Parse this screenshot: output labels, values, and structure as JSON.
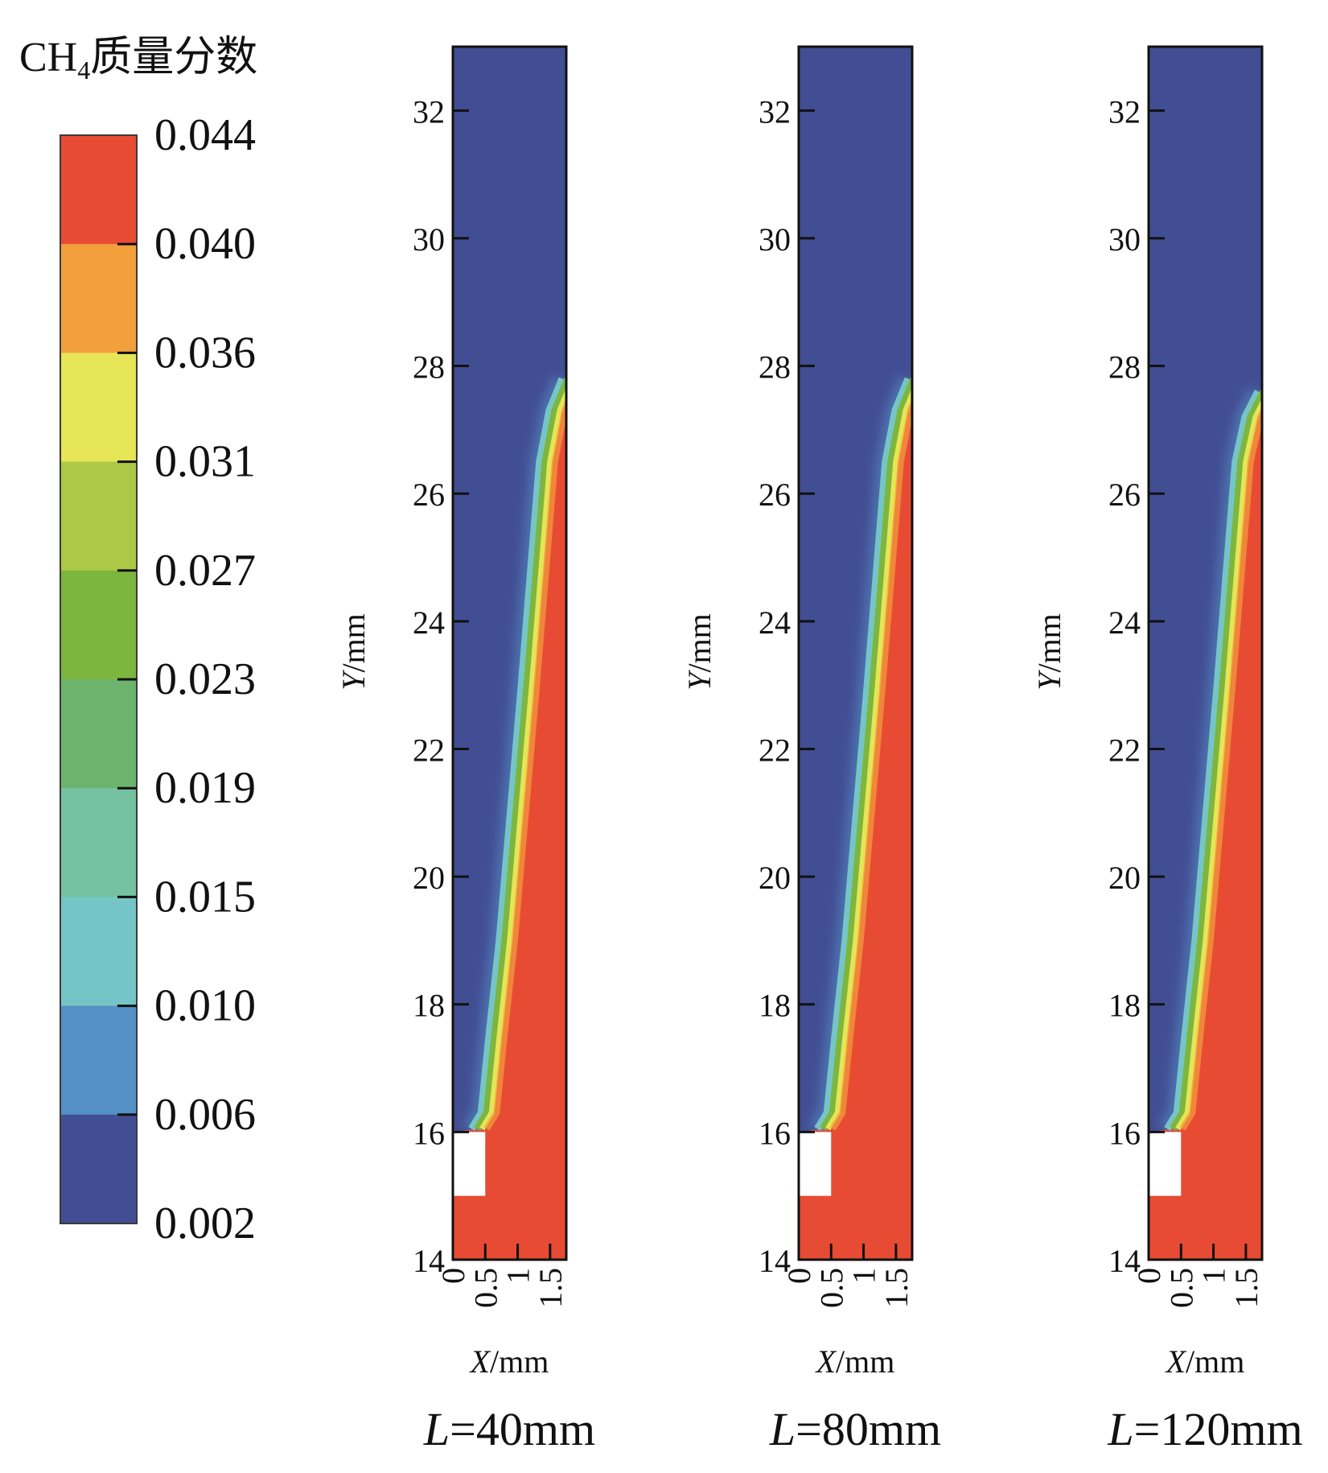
{
  "colorbar": {
    "title_main": "CH",
    "title_sub": "4",
    "title_rest": "质量分数",
    "tick_labels": [
      "0.044",
      "0.040",
      "0.036",
      "0.031",
      "0.027",
      "0.023",
      "0.019",
      "0.015",
      "0.010",
      "0.006",
      "0.002"
    ],
    "band_colors": [
      "#e84b33",
      "#f39f3c",
      "#e6e556",
      "#adc847",
      "#7cb63f",
      "#6cb46d",
      "#74c29f",
      "#76c5c6",
      "#5490c6",
      "#424e93"
    ]
  },
  "chart_data": [
    {
      "type": "heatmap",
      "title": "L=40mm",
      "label_var": "L",
      "label_value": "=40mm",
      "xlabel_var": "X",
      "xlabel_unit": "/mm",
      "ylabel_var": "Y",
      "ylabel_unit": "/mm",
      "xlim": [
        0,
        1.75
      ],
      "ylim": [
        14,
        33
      ],
      "xticks": [
        0,
        0.5,
        1,
        1.5
      ],
      "xtick_labels": [
        "0",
        "0.5",
        "1",
        "1.5"
      ],
      "yticks": [
        14,
        16,
        18,
        20,
        22,
        24,
        26,
        28,
        30,
        32
      ],
      "ytick_labels": [
        "14",
        "16",
        "18",
        "20",
        "22",
        "24",
        "26",
        "28",
        "30",
        "32"
      ],
      "obstacle": {
        "x": [
          0,
          0.5
        ],
        "y": [
          15,
          16
        ]
      },
      "interface": [
        [
          0.35,
          16.05
        ],
        [
          0.5,
          16.3
        ],
        [
          0.62,
          17.5
        ],
        [
          0.78,
          19
        ],
        [
          0.95,
          21
        ],
        [
          1.12,
          23
        ],
        [
          1.28,
          25
        ],
        [
          1.4,
          26.5
        ],
        [
          1.55,
          27.3
        ],
        [
          1.75,
          27.8
        ]
      ],
      "value_min_region": 0.002,
      "value_max_region": 0.044
    },
    {
      "type": "heatmap",
      "title": "L=80mm",
      "label_var": "L",
      "label_value": "=80mm",
      "xlabel_var": "X",
      "xlabel_unit": "/mm",
      "ylabel_var": "Y",
      "ylabel_unit": "/mm",
      "xlim": [
        0,
        1.75
      ],
      "ylim": [
        14,
        33
      ],
      "xticks": [
        0,
        0.5,
        1,
        1.5
      ],
      "xtick_labels": [
        "0",
        "0.5",
        "1",
        "1.5"
      ],
      "yticks": [
        14,
        16,
        18,
        20,
        22,
        24,
        26,
        28,
        30,
        32
      ],
      "ytick_labels": [
        "14",
        "16",
        "18",
        "20",
        "22",
        "24",
        "26",
        "28",
        "30",
        "32"
      ],
      "obstacle": {
        "x": [
          0,
          0.5
        ],
        "y": [
          15,
          16
        ]
      },
      "interface": [
        [
          0.35,
          16.05
        ],
        [
          0.5,
          16.3
        ],
        [
          0.62,
          17.5
        ],
        [
          0.78,
          19
        ],
        [
          0.95,
          21
        ],
        [
          1.12,
          23
        ],
        [
          1.28,
          25
        ],
        [
          1.4,
          26.5
        ],
        [
          1.55,
          27.3
        ],
        [
          1.75,
          27.8
        ]
      ],
      "value_min_region": 0.002,
      "value_max_region": 0.044
    },
    {
      "type": "heatmap",
      "title": "L=120mm",
      "label_var": "L",
      "label_value": "=120mm",
      "xlabel_var": "X",
      "xlabel_unit": "/mm",
      "ylabel_var": "Y",
      "ylabel_unit": "/mm",
      "xlim": [
        0,
        1.75
      ],
      "ylim": [
        14,
        33
      ],
      "xticks": [
        0,
        0.5,
        1,
        1.5
      ],
      "xtick_labels": [
        "0",
        "0.5",
        "1",
        "1.5"
      ],
      "yticks": [
        14,
        16,
        18,
        20,
        22,
        24,
        26,
        28,
        30,
        32
      ],
      "ytick_labels": [
        "14",
        "16",
        "18",
        "20",
        "22",
        "24",
        "26",
        "28",
        "30",
        "32"
      ],
      "obstacle": {
        "x": [
          0,
          0.5
        ],
        "y": [
          15,
          16
        ]
      },
      "interface": [
        [
          0.35,
          16.05
        ],
        [
          0.5,
          16.3
        ],
        [
          0.62,
          17.5
        ],
        [
          0.78,
          19
        ],
        [
          0.95,
          21
        ],
        [
          1.12,
          23
        ],
        [
          1.28,
          25
        ],
        [
          1.4,
          26.5
        ],
        [
          1.55,
          27.2
        ],
        [
          1.75,
          27.6
        ]
      ],
      "value_min_region": 0.002,
      "value_max_region": 0.044
    }
  ]
}
